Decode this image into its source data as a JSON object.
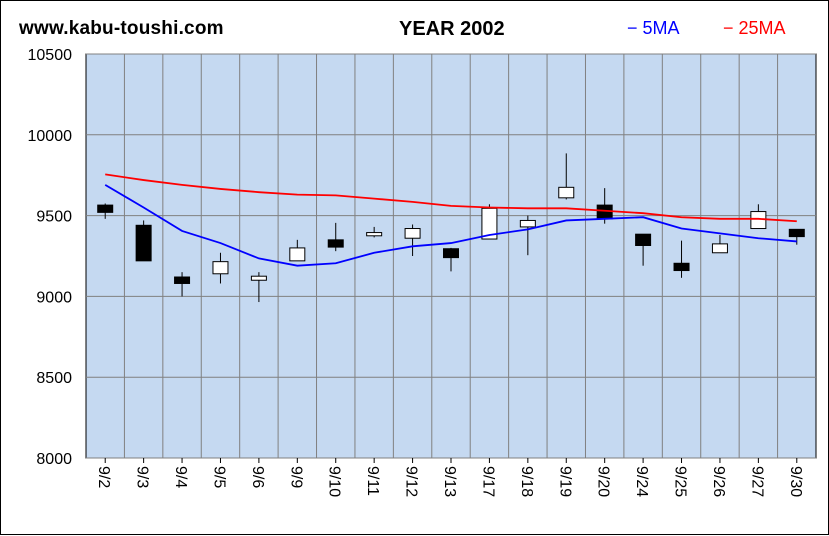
{
  "header": {
    "site": "www.kabu-toushi.com",
    "title": "YEAR 2002",
    "legend_5ma": "− 5MA",
    "legend_25ma": "− 25MA"
  },
  "colors": {
    "plot_bg": "#c5d9f1",
    "grid": "#808080",
    "ma5": "#0000ff",
    "ma25": "#ff0000",
    "up_body": "#ffffff",
    "down_body": "#000000"
  },
  "chart_data": {
    "type": "candlestick",
    "title": "YEAR 2002",
    "ylim": [
      8000,
      10500
    ],
    "yticks": [
      8000,
      8500,
      9000,
      9500,
      10000,
      10500
    ],
    "grid": true,
    "legend_position": "top-right",
    "categories": [
      "9/2",
      "9/3",
      "9/4",
      "9/5",
      "9/6",
      "9/9",
      "9/10",
      "9/11",
      "9/12",
      "9/13",
      "9/17",
      "9/18",
      "9/19",
      "9/20",
      "9/24",
      "9/25",
      "9/26",
      "9/27",
      "9/30"
    ],
    "ohlc": [
      {
        "open": 9565,
        "high": 9575,
        "low": 9480,
        "close": 9520
      },
      {
        "open": 9440,
        "high": 9470,
        "low": 9220,
        "close": 9220
      },
      {
        "open": 9120,
        "high": 9150,
        "low": 9000,
        "close": 9080
      },
      {
        "open": 9140,
        "high": 9270,
        "low": 9080,
        "close": 9215
      },
      {
        "open": 9100,
        "high": 9150,
        "low": 8965,
        "close": 9125
      },
      {
        "open": 9220,
        "high": 9350,
        "low": 9220,
        "close": 9300
      },
      {
        "open": 9350,
        "high": 9455,
        "low": 9280,
        "close": 9305
      },
      {
        "open": 9375,
        "high": 9430,
        "low": 9365,
        "close": 9395
      },
      {
        "open": 9360,
        "high": 9445,
        "low": 9250,
        "close": 9420
      },
      {
        "open": 9295,
        "high": 9300,
        "low": 9155,
        "close": 9240
      },
      {
        "open": 9355,
        "high": 9570,
        "low": 9355,
        "close": 9545
      },
      {
        "open": 9430,
        "high": 9500,
        "low": 9255,
        "close": 9470
      },
      {
        "open": 9610,
        "high": 9885,
        "low": 9600,
        "close": 9675
      },
      {
        "open": 9565,
        "high": 9670,
        "low": 9450,
        "close": 9480
      },
      {
        "open": 9385,
        "high": 9385,
        "low": 9190,
        "close": 9315
      },
      {
        "open": 9205,
        "high": 9345,
        "low": 9115,
        "close": 9160
      },
      {
        "open": 9270,
        "high": 9380,
        "low": 9270,
        "close": 9325
      },
      {
        "open": 9420,
        "high": 9570,
        "low": 9420,
        "close": 9525
      },
      {
        "open": 9415,
        "high": 9415,
        "low": 9320,
        "close": 9370
      }
    ],
    "series": [
      {
        "name": "5MA",
        "values": [
          9690,
          9550,
          9405,
          9330,
          9235,
          9190,
          9205,
          9270,
          9310,
          9330,
          9380,
          9415,
          9470,
          9480,
          9490,
          9420,
          9390,
          9360,
          9340
        ]
      },
      {
        "name": "25MA",
        "values": [
          9755,
          9720,
          9690,
          9665,
          9645,
          9630,
          9625,
          9605,
          9585,
          9560,
          9550,
          9545,
          9545,
          9530,
          9515,
          9490,
          9480,
          9480,
          9465
        ]
      }
    ]
  }
}
